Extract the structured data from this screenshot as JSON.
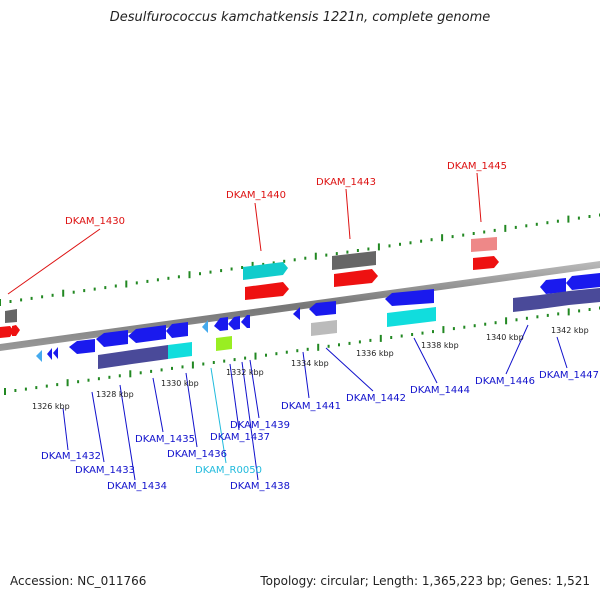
{
  "title": "Desulfurococcus kamchatkensis 1221n, complete genome",
  "footer": {
    "accession": "Accession: NC_011766",
    "summary": "Topology: circular; Length: 1,365,223 bp; Genes: 1,521"
  },
  "colors": {
    "label_red": "#dd1111",
    "label_blue": "#1111cc",
    "label_cyan": "#22bbdd",
    "gene_blue": "#1a1aee",
    "gene_red": "#ee1111",
    "gene_cyan": "#11dddd",
    "gene_gray": "#666666",
    "gene_slate": "#4a4a99",
    "gene_pink": "#ee8888",
    "gene_green": "#99ee22",
    "gene_lightgray": "#bbbbbb",
    "gene_lightblue": "#44aaee",
    "tick_green": "#228822"
  },
  "scale_labels": [
    {
      "text": "1326 kbp"
    },
    {
      "text": "1328 kbp"
    },
    {
      "text": "1330 kbp"
    },
    {
      "text": "1332 kbp"
    },
    {
      "text": "1334 kbp"
    },
    {
      "text": "1336 kbp"
    },
    {
      "text": "1338 kbp"
    },
    {
      "text": "1340 kbp"
    },
    {
      "text": "1342 kbp"
    }
  ],
  "gene_labels": [
    {
      "text": "DKAM_1430",
      "color": "label_red"
    },
    {
      "text": "DKAM_1440",
      "color": "label_red"
    },
    {
      "text": "DKAM_1443",
      "color": "label_red"
    },
    {
      "text": "DKAM_1445",
      "color": "label_red"
    },
    {
      "text": "DKAM_1432",
      "color": "label_blue"
    },
    {
      "text": "DKAM_1433",
      "color": "label_blue"
    },
    {
      "text": "DKAM_1434",
      "color": "label_blue"
    },
    {
      "text": "DKAM_1435",
      "color": "label_blue"
    },
    {
      "text": "DKAM_1436",
      "color": "label_blue"
    },
    {
      "text": "DKAM_R0050",
      "color": "label_cyan"
    },
    {
      "text": "DKAM_1437",
      "color": "label_blue"
    },
    {
      "text": "DKAM_1438",
      "color": "label_blue"
    },
    {
      "text": "DKAM_1439",
      "color": "label_blue"
    },
    {
      "text": "DKAM_1441",
      "color": "label_blue"
    },
    {
      "text": "DKAM_1442",
      "color": "label_blue"
    },
    {
      "text": "DKAM_1444",
      "color": "label_blue"
    },
    {
      "text": "DKAM_1446",
      "color": "label_blue"
    },
    {
      "text": "DKAM_1447",
      "color": "label_blue"
    }
  ]
}
